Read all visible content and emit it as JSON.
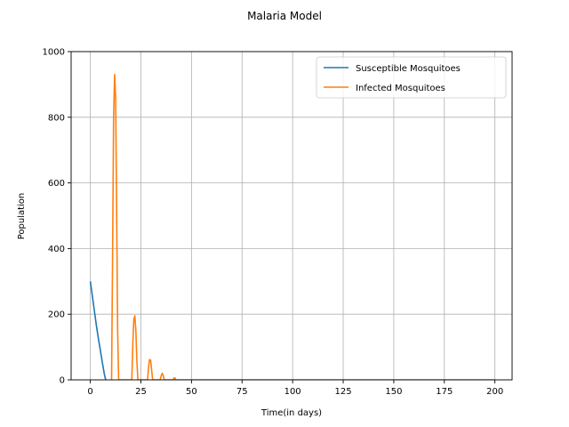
{
  "chart_data": {
    "type": "line",
    "title": "Malaria Model",
    "xlabel": "Time(in days)",
    "ylabel": "Population",
    "xlim": [
      -9.5,
      208.5
    ],
    "ylim": [
      0,
      1000
    ],
    "xticks": [
      0,
      25,
      50,
      75,
      100,
      125,
      150,
      175,
      200
    ],
    "yticks": [
      0,
      200,
      400,
      600,
      800,
      1000
    ],
    "grid": true,
    "legend_position": "top-right",
    "series": [
      {
        "name": "Susceptible Mosquitoes",
        "color": "#1f77b4",
        "x": [
          0,
          1,
          2,
          3,
          4,
          5,
          6,
          7,
          7.6
        ],
        "y": [
          300,
          255,
          210,
          165,
          125,
          88,
          50,
          15,
          0
        ]
      },
      {
        "name": "Infected Mosquitoes",
        "color": "#ff7f0e",
        "x": [
          10.5,
          11,
          11.5,
          12,
          12.5,
          13,
          13.5,
          14,
          20.5,
          21,
          21.5,
          22,
          22.5,
          23,
          23.5,
          28.3,
          28.8,
          29.3,
          29.8,
          30.3,
          30.8,
          34.5,
          35,
          35.5,
          36,
          36.5,
          40.8,
          41.3,
          41.8,
          42.3,
          200
        ],
        "y": [
          0,
          380,
          800,
          930,
          860,
          520,
          150,
          0,
          0,
          110,
          185,
          195,
          150,
          60,
          0,
          0,
          40,
          62,
          60,
          30,
          0,
          0,
          12,
          20,
          14,
          0,
          0,
          5,
          6,
          0,
          0
        ]
      }
    ]
  }
}
